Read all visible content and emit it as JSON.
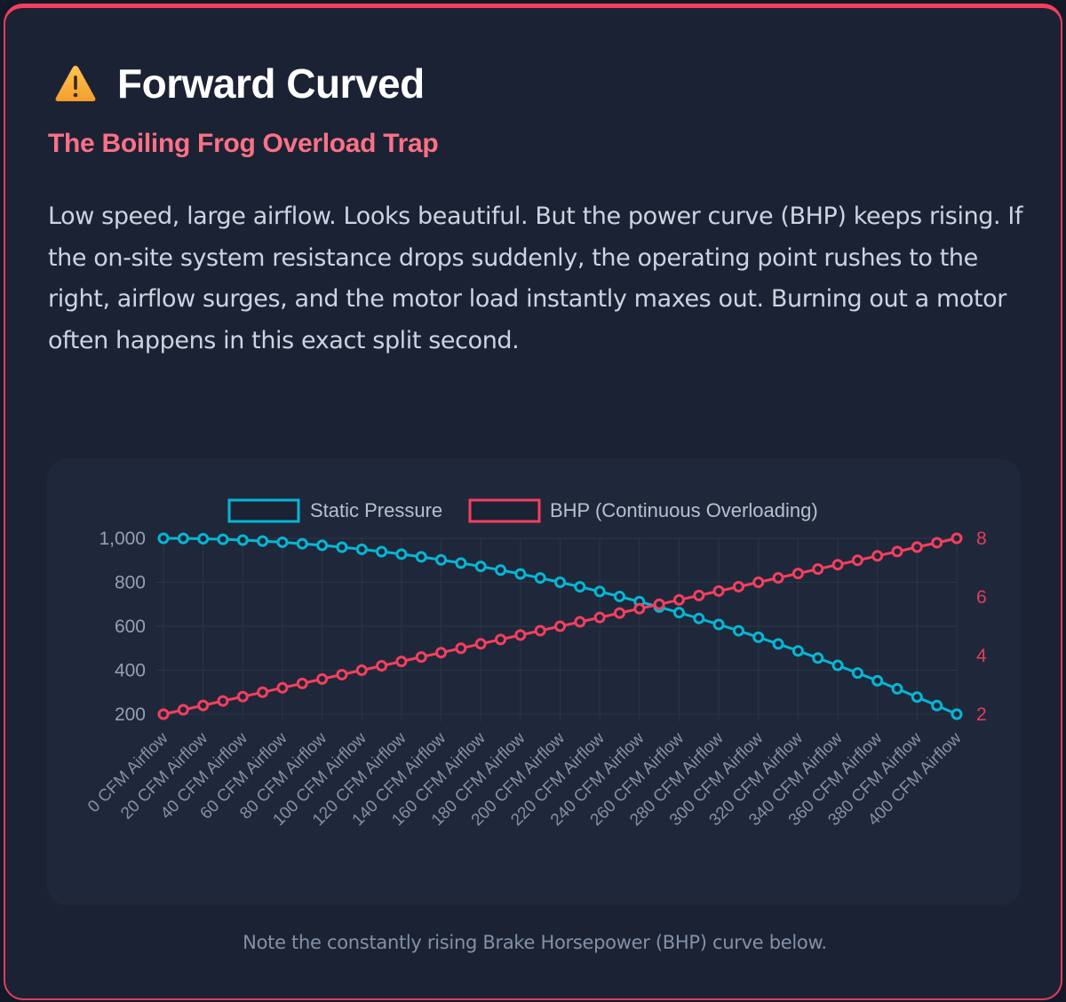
{
  "card": {
    "icon": "warning-icon",
    "title": "Forward Curved",
    "subtitle": "The Boiling Frog Overload Trap",
    "body": "Low speed, large airflow. Looks beautiful. But the power curve (BHP) keeps rising. If the on-site system resistance drops suddenly, the operating point rushes to the right, airflow surges, and the motor load instantly maxes out. Burning out a motor often happens in this exact split second.",
    "note": "Note the constantly rising Brake Horsepower (BHP) curve below.",
    "accent_color": "#f43f5e"
  },
  "chart_data": {
    "type": "line",
    "title": "",
    "xlabel": "",
    "ylabel": "",
    "legend_position": "top",
    "grid": true,
    "x": [
      0,
      10,
      20,
      30,
      40,
      50,
      60,
      70,
      80,
      90,
      100,
      110,
      120,
      130,
      140,
      150,
      160,
      170,
      180,
      190,
      200,
      210,
      220,
      230,
      240,
      250,
      260,
      270,
      280,
      290,
      300,
      310,
      320,
      330,
      340,
      350,
      360,
      370,
      380,
      390,
      400
    ],
    "x_tick_labels": [
      "0 CFM Airflow",
      "20 CFM Airflow",
      "40 CFM Airflow",
      "60 CFM Airflow",
      "80 CFM Airflow",
      "100 CFM Airflow",
      "120 CFM Airflow",
      "140 CFM Airflow",
      "160 CFM Airflow",
      "180 CFM Airflow",
      "200 CFM Airflow",
      "220 CFM Airflow",
      "240 CFM Airflow",
      "260 CFM Airflow",
      "280 CFM Airflow",
      "300 CFM Airflow",
      "320 CFM Airflow",
      "340 CFM Airflow",
      "360 CFM Airflow",
      "380 CFM Airflow",
      "400 CFM Airflow"
    ],
    "axes": {
      "y_left": {
        "min": 200,
        "max": 1000,
        "ticks": [
          "1,000",
          "800",
          "600",
          "400",
          "200"
        ],
        "color": "#94a0b4"
      },
      "y_right": {
        "min": 2,
        "max": 8,
        "ticks": [
          "8",
          "6",
          "4",
          "2"
        ],
        "color": "#e23d5e"
      }
    },
    "series": [
      {
        "name": "Static Pressure",
        "axis": "y_left",
        "color": "#06b6d4",
        "values": [
          1000,
          999.5,
          998,
          995.5,
          992,
          987.5,
          982,
          975.5,
          968,
          959.5,
          950,
          939.5,
          928,
          915.5,
          902,
          887.5,
          872,
          855.5,
          838,
          819.5,
          800,
          779.5,
          758,
          735.5,
          712,
          687.5,
          662,
          635.5,
          608,
          579.5,
          550,
          519.5,
          488,
          455.5,
          422,
          387.5,
          352,
          315.5,
          278,
          239.5,
          200
        ]
      },
      {
        "name": "BHP (Continuous Overloading)",
        "axis": "y_right",
        "color": "#f43f5e",
        "values": [
          2,
          2.15,
          2.3,
          2.45,
          2.6,
          2.75,
          2.9,
          3.05,
          3.2,
          3.35,
          3.5,
          3.65,
          3.8,
          3.95,
          4.1,
          4.25,
          4.4,
          4.55,
          4.7,
          4.85,
          5,
          5.15,
          5.3,
          5.45,
          5.6,
          5.75,
          5.9,
          6.05,
          6.2,
          6.35,
          6.5,
          6.65,
          6.8,
          6.95,
          7.1,
          7.25,
          7.4,
          7.55,
          7.7,
          7.85,
          8
        ]
      }
    ]
  }
}
